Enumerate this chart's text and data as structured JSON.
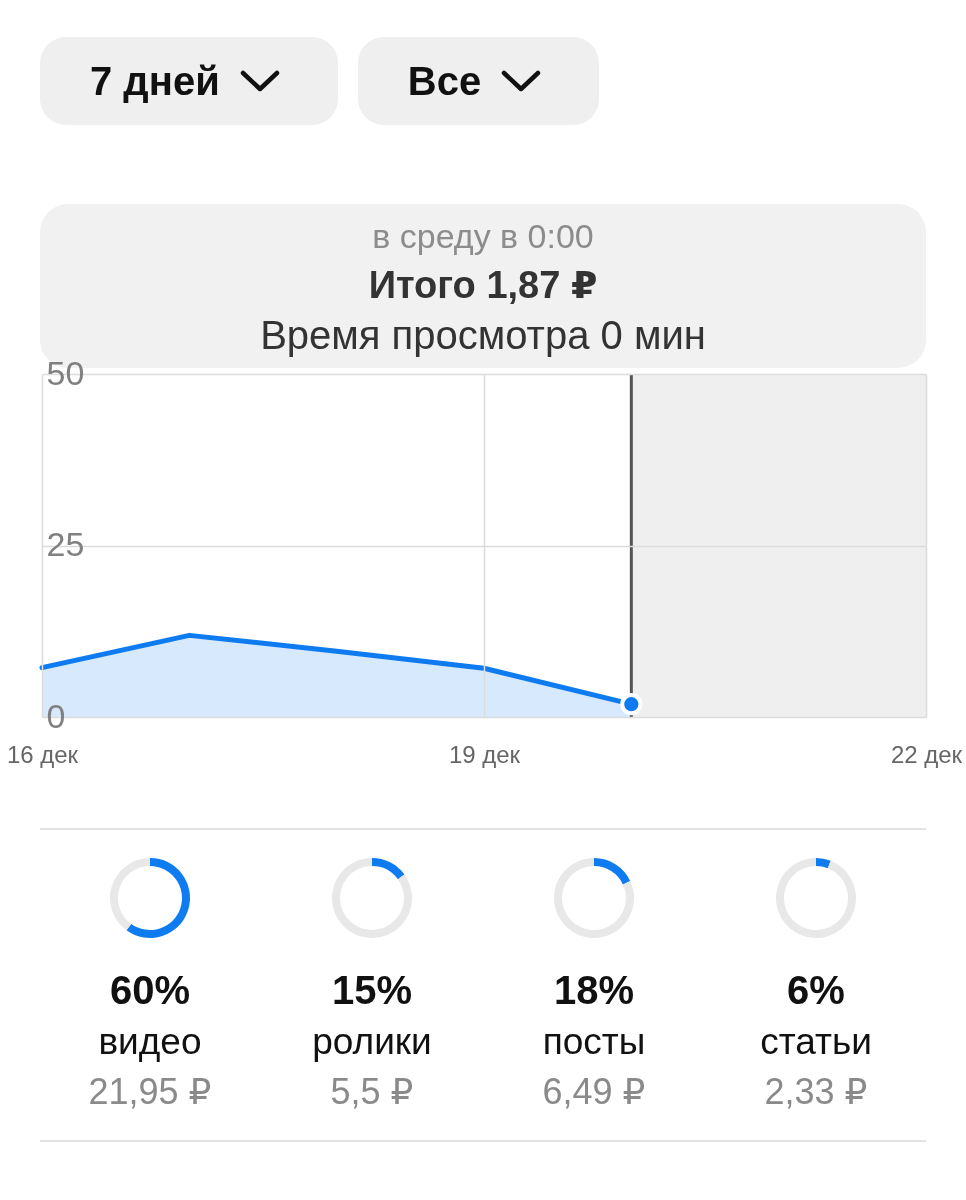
{
  "chart_data": [
    {
      "type": "area",
      "annotations": [
        "7 дней",
        "Все",
        "в среду в 0:00",
        "Итого 1,87 ₽",
        "Время просмотра 0 мин"
      ],
      "x": [
        "--12-16",
        "--12-17",
        "--12-18",
        "--12-19",
        "--12-20"
      ],
      "series": [
        {
          "color": "#0f7bf0",
          "values": [
            7.2,
            11.9,
            9.6,
            7.1,
            1.87
          ]
        },
        {
          "type": "scatter",
          "color": "#0f7bf0",
          "x": [
            "--12-20"
          ],
          "values": [
            1.87
          ]
        }
      ],
      "xlim": [
        "--12-16",
        "--12-22"
      ],
      "xticks": [
        {
          "value": "--12-16",
          "label": "16 дек"
        },
        {
          "value": "--12-19",
          "label": "19 дек"
        },
        {
          "value": "--12-22",
          "label": "22 дек"
        }
      ],
      "ylim": [
        0,
        50
      ],
      "yticks": [
        0,
        25,
        50
      ],
      "grid": true,
      "ref_lines": [
        {
          "axis": "x",
          "value": "--12-20",
          "color": "#555555"
        }
      ],
      "bands": [
        {
          "axis": "x",
          "from": "--12-20",
          "to": "--12-22",
          "color": "#efefef"
        }
      ]
    },
    {
      "type": "donut",
      "title": "60%",
      "subtitle": "видео",
      "categories": [
        null,
        null
      ],
      "values": [
        60,
        40
      ],
      "colors": [
        "#0f7bf0",
        "#e8e8e8"
      ],
      "annotations": [
        "21,95 ₽"
      ]
    },
    {
      "type": "donut",
      "title": "15%",
      "subtitle": "ролики",
      "categories": [
        null,
        null
      ],
      "values": [
        15,
        85
      ],
      "colors": [
        "#0f7bf0",
        "#e8e8e8"
      ],
      "annotations": [
        "5,5 ₽"
      ]
    },
    {
      "type": "donut",
      "title": "18%",
      "subtitle": "посты",
      "categories": [
        null,
        null
      ],
      "values": [
        18,
        82
      ],
      "colors": [
        "#0f7bf0",
        "#e8e8e8"
      ],
      "annotations": [
        "6,49 ₽"
      ]
    },
    {
      "type": "donut",
      "title": "6%",
      "subtitle": "статьи",
      "categories": [
        null,
        null
      ],
      "values": [
        6,
        94
      ],
      "colors": [
        "#0f7bf0",
        "#e8e8e8"
      ],
      "annotations": [
        "2,33 ₽"
      ]
    }
  ]
}
